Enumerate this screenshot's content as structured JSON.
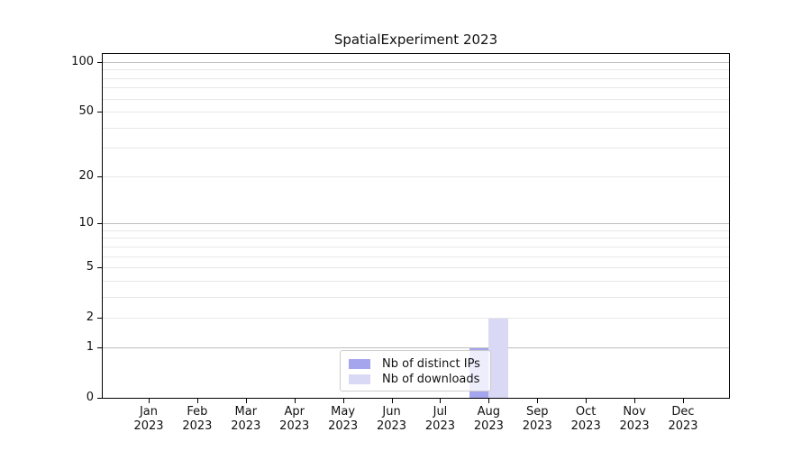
{
  "chart_data": {
    "type": "bar",
    "title": "SpatialExperiment 2023",
    "categories": [
      "Jan 2023",
      "Feb 2023",
      "Mar 2023",
      "Apr 2023",
      "May 2023",
      "Jun 2023",
      "Jul 2023",
      "Aug 2023",
      "Sep 2023",
      "Oct 2023",
      "Nov 2023",
      "Dec 2023"
    ],
    "x_tick_labels": [
      [
        "Jan",
        "2023"
      ],
      [
        "Feb",
        "2023"
      ],
      [
        "Mar",
        "2023"
      ],
      [
        "Apr",
        "2023"
      ],
      [
        "May",
        "2023"
      ],
      [
        "Jun",
        "2023"
      ],
      [
        "Jul",
        "2023"
      ],
      [
        "Aug",
        "2023"
      ],
      [
        "Sep",
        "2023"
      ],
      [
        "Oct",
        "2023"
      ],
      [
        "Nov",
        "2023"
      ],
      [
        "Dec",
        "2023"
      ]
    ],
    "series": [
      {
        "name": "Nb of distinct IPs",
        "color": "#a5a5ee",
        "values": [
          0,
          0,
          0,
          0,
          0,
          0,
          0,
          1,
          0,
          0,
          0,
          0
        ]
      },
      {
        "name": "Nb of downloads",
        "color": "#d9d9f6",
        "values": [
          0,
          0,
          0,
          0,
          0,
          0,
          0,
          2,
          0,
          0,
          0,
          0
        ]
      }
    ],
    "y_axis": {
      "scale": "log1p",
      "tick_labels": [
        "0",
        "1",
        "2",
        "5",
        "10",
        "20",
        "50",
        "100"
      ],
      "tick_values": [
        0,
        1,
        2,
        5,
        10,
        20,
        50,
        100
      ],
      "major_gridlines": [
        1,
        10,
        100
      ],
      "minor_gridlines": [
        2,
        3,
        4,
        5,
        6,
        7,
        8,
        9,
        20,
        30,
        40,
        50,
        60,
        70,
        80,
        90
      ],
      "range_max": 113
    },
    "legend": {
      "position": "lower center"
    },
    "grid": true
  },
  "colors": {
    "major_grid": "#bdbdbd",
    "minor_grid": "#e8e8e8",
    "spine": "#000000",
    "legend_border": "#cccccc"
  }
}
